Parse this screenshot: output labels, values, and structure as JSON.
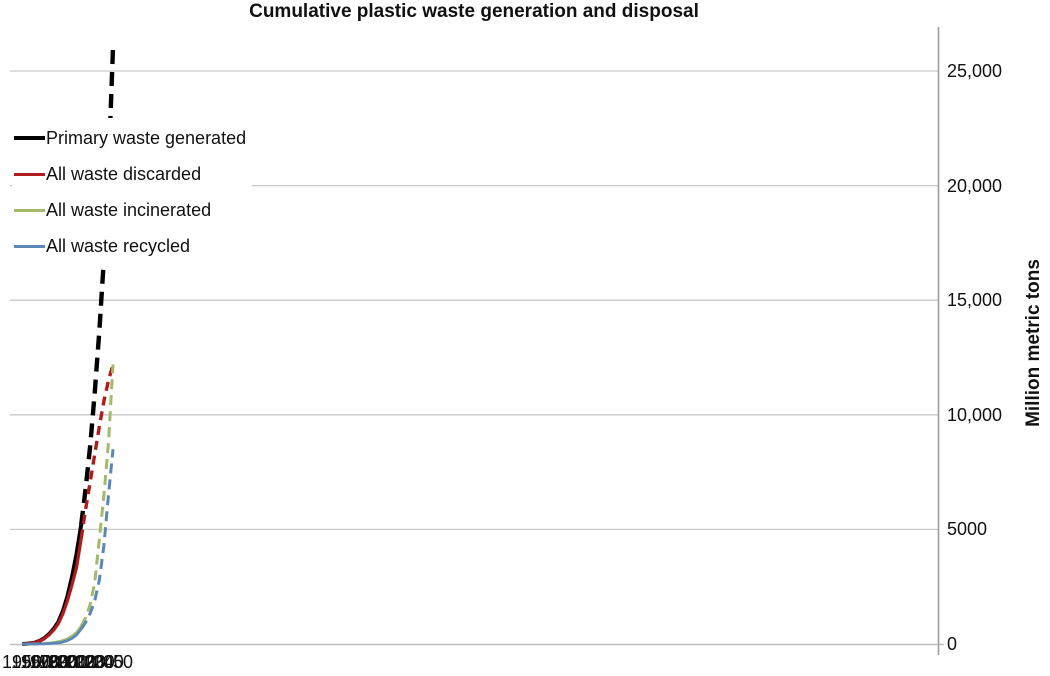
{
  "title": "Cumulative plastic waste generation and disposal",
  "y_axis": {
    "label": "Million metric tons",
    "ticks": [
      {
        "value": 0,
        "label": "0"
      },
      {
        "value": 5000,
        "label": "5000"
      },
      {
        "value": 10000,
        "label": "10,000"
      },
      {
        "value": 15000,
        "label": "15,000"
      },
      {
        "value": 20000,
        "label": "20,000"
      },
      {
        "value": 25000,
        "label": "25,000"
      }
    ]
  },
  "x_axis": {
    "ticks": [
      "1950",
      "1960",
      "1970",
      "1980",
      "1990",
      "2000",
      "2010",
      "2020",
      "2030",
      "2040",
      "2050"
    ]
  },
  "colors": {
    "grid": "#c9c9c9",
    "axis_right": "#9d9d9d",
    "axis_bottom": "#bfbfbf"
  },
  "chart_data": {
    "type": "line",
    "title": "Cumulative plastic waste generation and disposal",
    "xlabel": "",
    "ylabel": "Million metric tons",
    "xlim": [
      1950,
      2050
    ],
    "ylim": [
      0,
      26500
    ],
    "grid": true,
    "legend_position": "upper left",
    "style_note": "solid lines = historical (through 2015), dashed lines = projected (2015-2050)",
    "solid_until_x": 2015,
    "x": [
      1950,
      1955,
      1960,
      1965,
      1970,
      1975,
      1980,
      1985,
      1990,
      1995,
      2000,
      2005,
      2010,
      2015,
      2020,
      2025,
      2030,
      2035,
      2040,
      2045,
      2050
    ],
    "series": [
      {
        "name": "Primary waste generated",
        "color": "#000000",
        "values": [
          0,
          10,
          30,
          70,
          150,
          270,
          440,
          670,
          970,
          1450,
          2100,
          2950,
          3950,
          5200,
          6800,
          8700,
          11000,
          13700,
          16800,
          20700,
          26000
        ]
      },
      {
        "name": "All waste discarded",
        "color": "#b01b1e",
        "values": [
          0,
          10,
          30,
          65,
          140,
          250,
          410,
          620,
          900,
          1330,
          1900,
          2600,
          3350,
          4600,
          5900,
          7100,
          8300,
          9500,
          10600,
          11500,
          12200
        ]
      },
      {
        "name": "All waste incinerated",
        "color": "#a3ba68",
        "values": [
          0,
          0,
          0,
          5,
          10,
          20,
          40,
          70,
          100,
          150,
          230,
          350,
          500,
          780,
          1150,
          1750,
          2700,
          4600,
          6500,
          8800,
          12200
        ]
      },
      {
        "name": "All waste recycled",
        "color": "#5b87b8",
        "values": [
          0,
          0,
          0,
          0,
          5,
          10,
          20,
          35,
          50,
          90,
          150,
          250,
          400,
          650,
          950,
          1350,
          1900,
          2800,
          4300,
          6500,
          8500
        ]
      }
    ]
  }
}
